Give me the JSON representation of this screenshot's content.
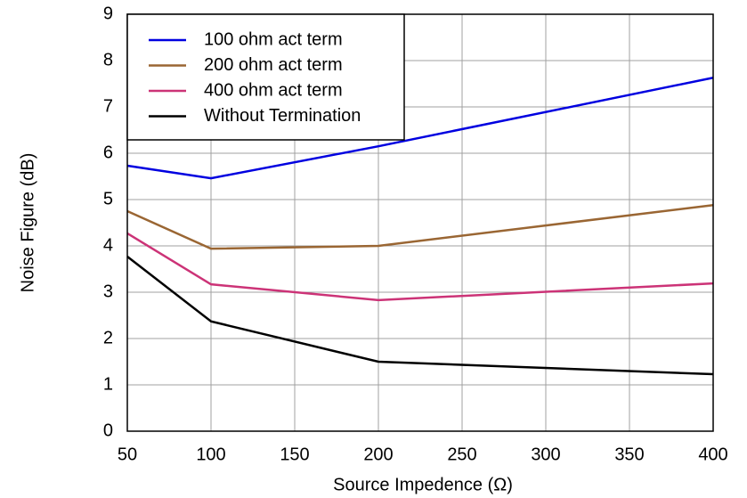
{
  "chart_data": {
    "type": "line",
    "x_label": "Source Impedence (Ω)",
    "y_label": "Noise Figure (dB)",
    "x": [
      50,
      100,
      200,
      400
    ],
    "series": [
      {
        "name": "100 ohm act term",
        "color": "#0000e0",
        "values": [
          5.73,
          5.46,
          6.15,
          7.63
        ]
      },
      {
        "name": "200 ohm act term",
        "color": "#9a6633",
        "values": [
          4.75,
          3.94,
          4.0,
          4.88
        ]
      },
      {
        "name": "400 ohm act term",
        "color": "#cc3377",
        "values": [
          4.27,
          3.17,
          2.83,
          3.19
        ]
      },
      {
        "name": "Without Termination",
        "color": "#000000",
        "values": [
          3.77,
          2.37,
          1.5,
          1.23
        ]
      }
    ],
    "xlim": [
      50,
      400
    ],
    "xticks": [
      50,
      100,
      150,
      200,
      250,
      300,
      350,
      400
    ],
    "ylim": [
      0,
      9
    ],
    "yticks": [
      0,
      1,
      2,
      3,
      4,
      5,
      6,
      7,
      8,
      9
    ],
    "grid": true,
    "legend_position": "upper left"
  }
}
